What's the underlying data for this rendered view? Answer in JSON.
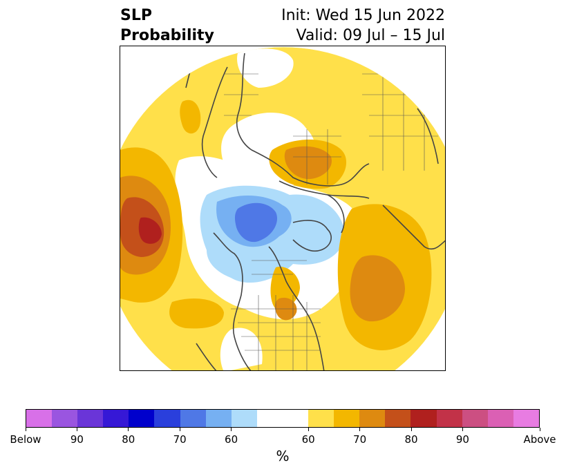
{
  "title": {
    "left_line1": "SLP",
    "left_line2": "Probability",
    "right_line1": "Init: Wed 15 Jun 2022",
    "right_line2": "Valid: 09 Jul – 15 Jul"
  },
  "colorbar": {
    "unit": "%",
    "colors": [
      "#d870e8",
      "#9a55e0",
      "#6a35d8",
      "#3618d6",
      "#0000cc",
      "#2a3fdc",
      "#4f78e6",
      "#76b0f2",
      "#aedcfa",
      "#ffffff",
      "#ffffff",
      "#ffe04a",
      "#f3b700",
      "#de8a10",
      "#c4501a",
      "#b0201e",
      "#c23248",
      "#cc4f82",
      "#db60b4",
      "#e87ce2"
    ],
    "tick_labels": [
      "Below",
      "90",
      "80",
      "70",
      "60",
      "60",
      "70",
      "80",
      "90",
      "Above"
    ]
  },
  "legend_colors": {
    "below_light": "#aedcfa",
    "below_mid": "#76b0f2",
    "below_strong": "#4f78e6",
    "above_light": "#ffe04a",
    "above_mid": "#f3b700",
    "above_strong": "#de8a10",
    "above_stronger": "#c4501a",
    "above_max": "#b0201e"
  }
}
